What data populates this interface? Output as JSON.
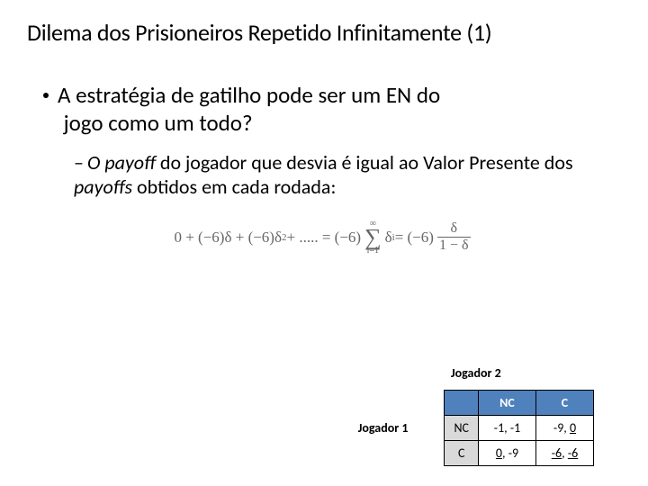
{
  "title": "Dilema dos Prisioneiros Repetido Infinitamente (1)",
  "bullet1_a": "A estratégia de gatilho pode ser um EN do",
  "bullet1_b": "jogo como um todo?",
  "bullet2_pre": "O ",
  "bullet2_it1": "payoff",
  "bullet2_mid": " do jogador que desvia é igual ao Valor Presente dos ",
  "bullet2_it2": "payoffs",
  "bullet2_post": " obtidos em cada rodada:",
  "formula": {
    "lhs_a": "0 + (−6)δ + (−6)δ",
    "lhs_sup": "2",
    "lhs_b": " + ..... = (−6)",
    "sum_top": "∞",
    "sum_bot": "i=1",
    "delta": "δ",
    "delta_sup": "i",
    "eq": " = (−6)",
    "frac_top": "δ",
    "frac_bot": "1 − δ"
  },
  "game": {
    "p1": "Jogador 1",
    "p2": "Jogador 2",
    "col_nc": "NC",
    "col_c": "C",
    "row_nc": "NC",
    "row_c": "C",
    "c_nc_nc": "-1, -1",
    "c_nc_c_a": "-9, ",
    "c_nc_c_b": "0",
    "c_c_nc_a": "0",
    "c_c_nc_b": ", -9",
    "c_c_c_a": "-6",
    "c_c_c_b": ", ",
    "c_c_c_c": "-6"
  },
  "colors": {
    "header_bg": "#4f81bd",
    "rowh_bg": "#d9d9d9",
    "text": "#000000",
    "formula": "#666666",
    "bg": "#ffffff"
  }
}
